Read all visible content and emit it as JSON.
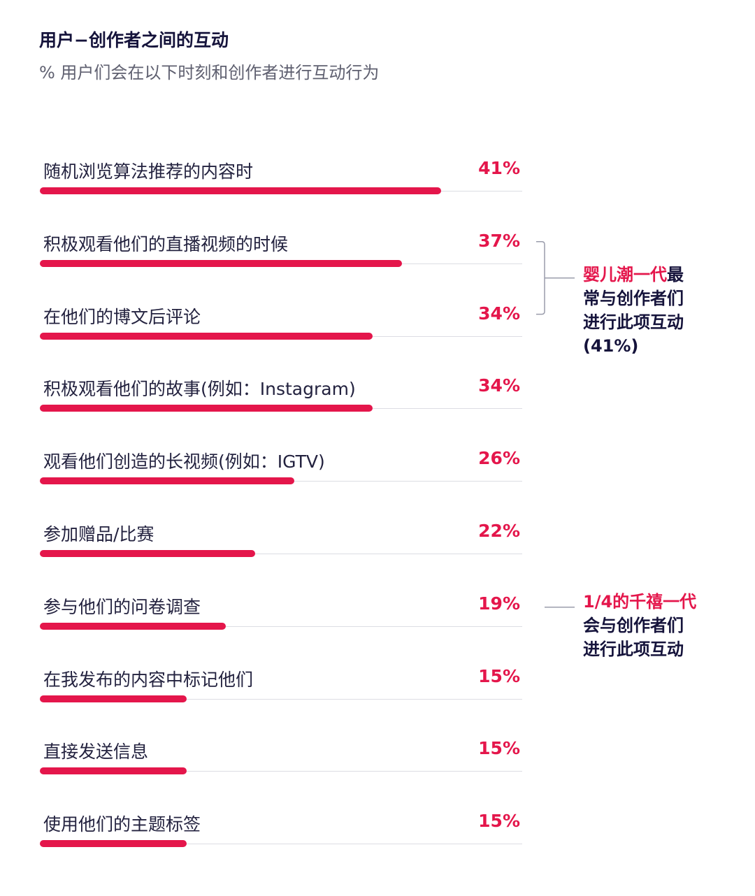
{
  "header": {
    "title": "用户−创作者之间的互动",
    "subtitle": "% 用户们会在以下时刻和创作者进行互动行为"
  },
  "colors": {
    "accent": "#e4164b",
    "text_dark": "#15133b",
    "text_muted": "#5f6070",
    "rule": "#dcdde3",
    "bracket": "#9a9cab"
  },
  "chart_data": {
    "type": "bar",
    "orientation": "horizontal",
    "title": "用户−创作者之间的互动",
    "subtitle": "% 用户们会在以下时刻和创作者进行互动行为",
    "categories": [
      "随机浏览算法推荐的内容时",
      "积极观看他们的直播视频的时候",
      "在他们的博文后评论",
      "积极观看他们的故事(例如：Instagram)",
      "观看他们创造的长视频(例如：IGTV)",
      "参加赠品/比赛",
      "参与他们的问卷调查",
      "在我发布的内容中标记他们",
      "直接发送信息",
      "使用他们的主题标签"
    ],
    "values": [
      41,
      37,
      34,
      34,
      26,
      22,
      19,
      15,
      15,
      15
    ],
    "value_labels": [
      "41%",
      "37%",
      "34%",
      "34%",
      "26%",
      "22%",
      "19%",
      "15%",
      "15%",
      "15%"
    ],
    "xlim": [
      0,
      50
    ],
    "grid": false,
    "legend": "none"
  },
  "annotations": [
    {
      "highlight": "婴儿潮一代",
      "text_after_highlight": "最",
      "lines": [
        "常与创作者们",
        "进行此项互动",
        "(41%)"
      ],
      "rows": [
        1,
        2
      ]
    },
    {
      "highlight": "1/4的千禧一代",
      "text_after_highlight": "",
      "lines": [
        "会与创作者们",
        "进行此项互动"
      ],
      "rows": [
        6
      ]
    }
  ]
}
